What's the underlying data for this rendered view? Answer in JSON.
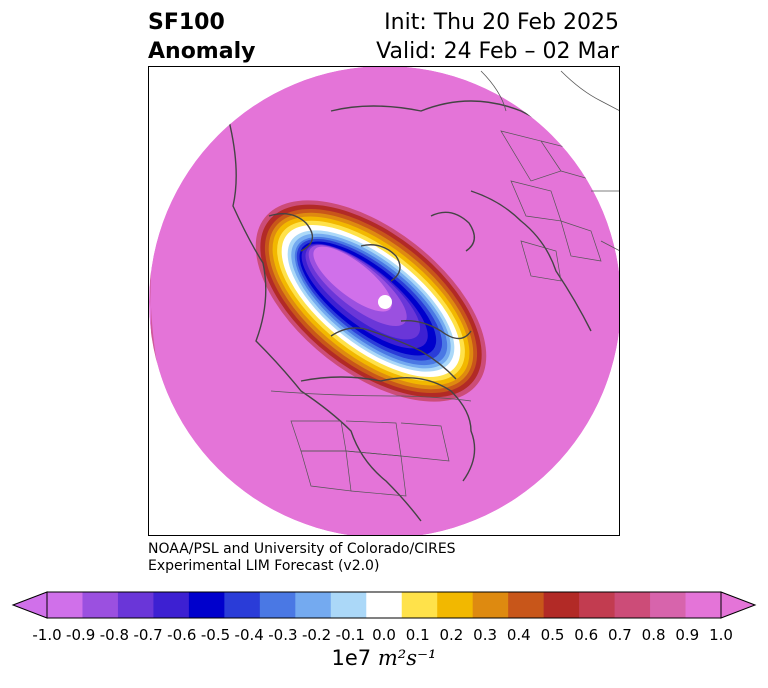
{
  "title": {
    "variable": "SF100",
    "field": "Anomaly",
    "init": "Init: Thu 20 Feb 2025",
    "valid": "Valid: 24 Feb – 02 Mar"
  },
  "credit": {
    "line1": "NOAA/PSL and University of Colorado/CIRES",
    "line2": "Experimental LIM Forecast (v2.0)"
  },
  "colorbar": {
    "unit_prefix": "1e7",
    "unit_text": "m²s⁻¹",
    "ticks": [
      "-1.0",
      "-0.9",
      "-0.8",
      "-0.7",
      "-0.6",
      "-0.5",
      "-0.4",
      "-0.3",
      "-0.2",
      "-0.1",
      "0.0",
      "0.1",
      "0.2",
      "0.3",
      "0.4",
      "0.5",
      "0.6",
      "0.7",
      "0.8",
      "0.9",
      "1.0"
    ],
    "colors": [
      "#d070ea",
      "#9b50e0",
      "#6a36d8",
      "#3d20d2",
      "#0000cc",
      "#2a3cd8",
      "#4a78e4",
      "#74aaf0",
      "#abd8f8",
      "#ffffff",
      "#ffe24a",
      "#f2b800",
      "#de8a10",
      "#c8561a",
      "#b22a26",
      "#c23c50",
      "#cc4c78",
      "#d764ac",
      "#e474d8"
    ]
  },
  "map": {
    "projection": "north-polar-stereographic",
    "background_color": "#e474d8",
    "anomaly_center": "negative",
    "anomaly_min": -1.0
  }
}
